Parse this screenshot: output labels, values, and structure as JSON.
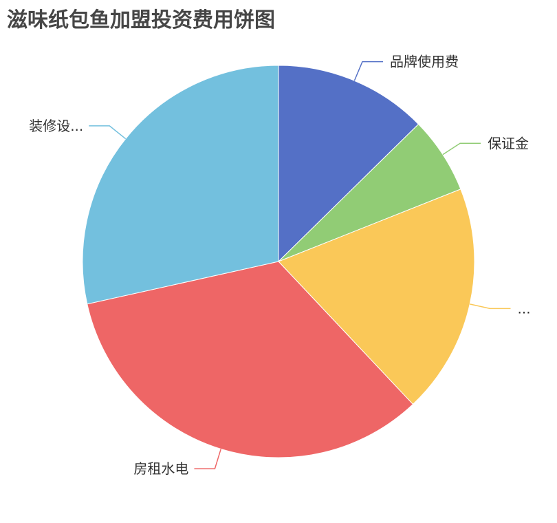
{
  "chart_data": {
    "type": "pie",
    "title": "滋味纸包鱼加盟投资费用饼图",
    "start": "top",
    "direction": "clockwise",
    "slices": [
      {
        "label": "品牌使用费",
        "value": 4,
        "color": "#5470c6"
      },
      {
        "label": "保证金",
        "value": 2,
        "color": "#91cc75"
      },
      {
        "label": "...",
        "value": 6,
        "color": "#fac858"
      },
      {
        "label": "房租水电",
        "value": 10.6,
        "color": "#ee6666"
      },
      {
        "label": "装修设...",
        "value": 9,
        "color": "#73c0de"
      }
    ]
  }
}
